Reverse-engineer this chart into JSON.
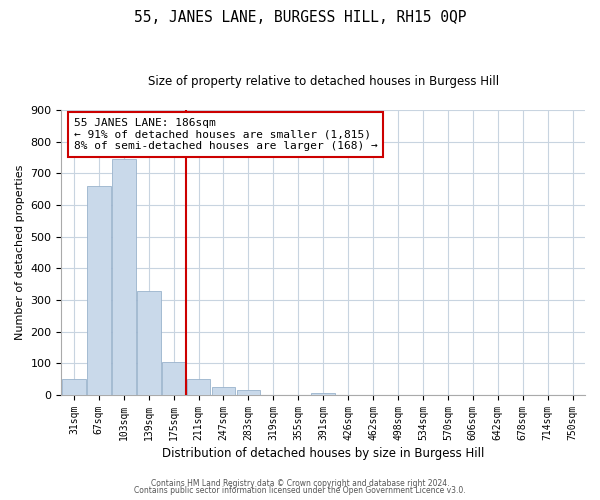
{
  "title": "55, JANES LANE, BURGESS HILL, RH15 0QP",
  "subtitle": "Size of property relative to detached houses in Burgess Hill",
  "xlabel": "Distribution of detached houses by size in Burgess Hill",
  "ylabel": "Number of detached properties",
  "bar_labels": [
    "31sqm",
    "67sqm",
    "103sqm",
    "139sqm",
    "175sqm",
    "211sqm",
    "247sqm",
    "283sqm",
    "319sqm",
    "355sqm",
    "391sqm",
    "426sqm",
    "462sqm",
    "498sqm",
    "534sqm",
    "570sqm",
    "606sqm",
    "642sqm",
    "678sqm",
    "714sqm",
    "750sqm"
  ],
  "bar_values": [
    52,
    660,
    745,
    330,
    105,
    52,
    27,
    15,
    0,
    0,
    8,
    0,
    0,
    0,
    0,
    0,
    0,
    0,
    0,
    0,
    0
  ],
  "bar_color": "#c9d9ea",
  "bar_edge_color": "#9ab3cc",
  "vline_x_index": 4.5,
  "vline_color": "#cc0000",
  "annotation_line1": "55 JANES LANE: 186sqm",
  "annotation_line2": "← 91% of detached houses are smaller (1,815)",
  "annotation_line3": "8% of semi-detached houses are larger (168) →",
  "annotation_box_color": "#ffffff",
  "annotation_box_edge": "#cc0000",
  "ylim": [
    0,
    900
  ],
  "yticks": [
    0,
    100,
    200,
    300,
    400,
    500,
    600,
    700,
    800,
    900
  ],
  "footer_line1": "Contains HM Land Registry data © Crown copyright and database right 2024.",
  "footer_line2": "Contains public sector information licensed under the Open Government Licence v3.0.",
  "bg_color": "#ffffff",
  "grid_color": "#c8d4e0",
  "title_fontsize": 10.5,
  "subtitle_fontsize": 8.5,
  "annotation_fontsize": 8,
  "tick_fontsize": 7,
  "ylabel_fontsize": 8,
  "xlabel_fontsize": 8.5
}
